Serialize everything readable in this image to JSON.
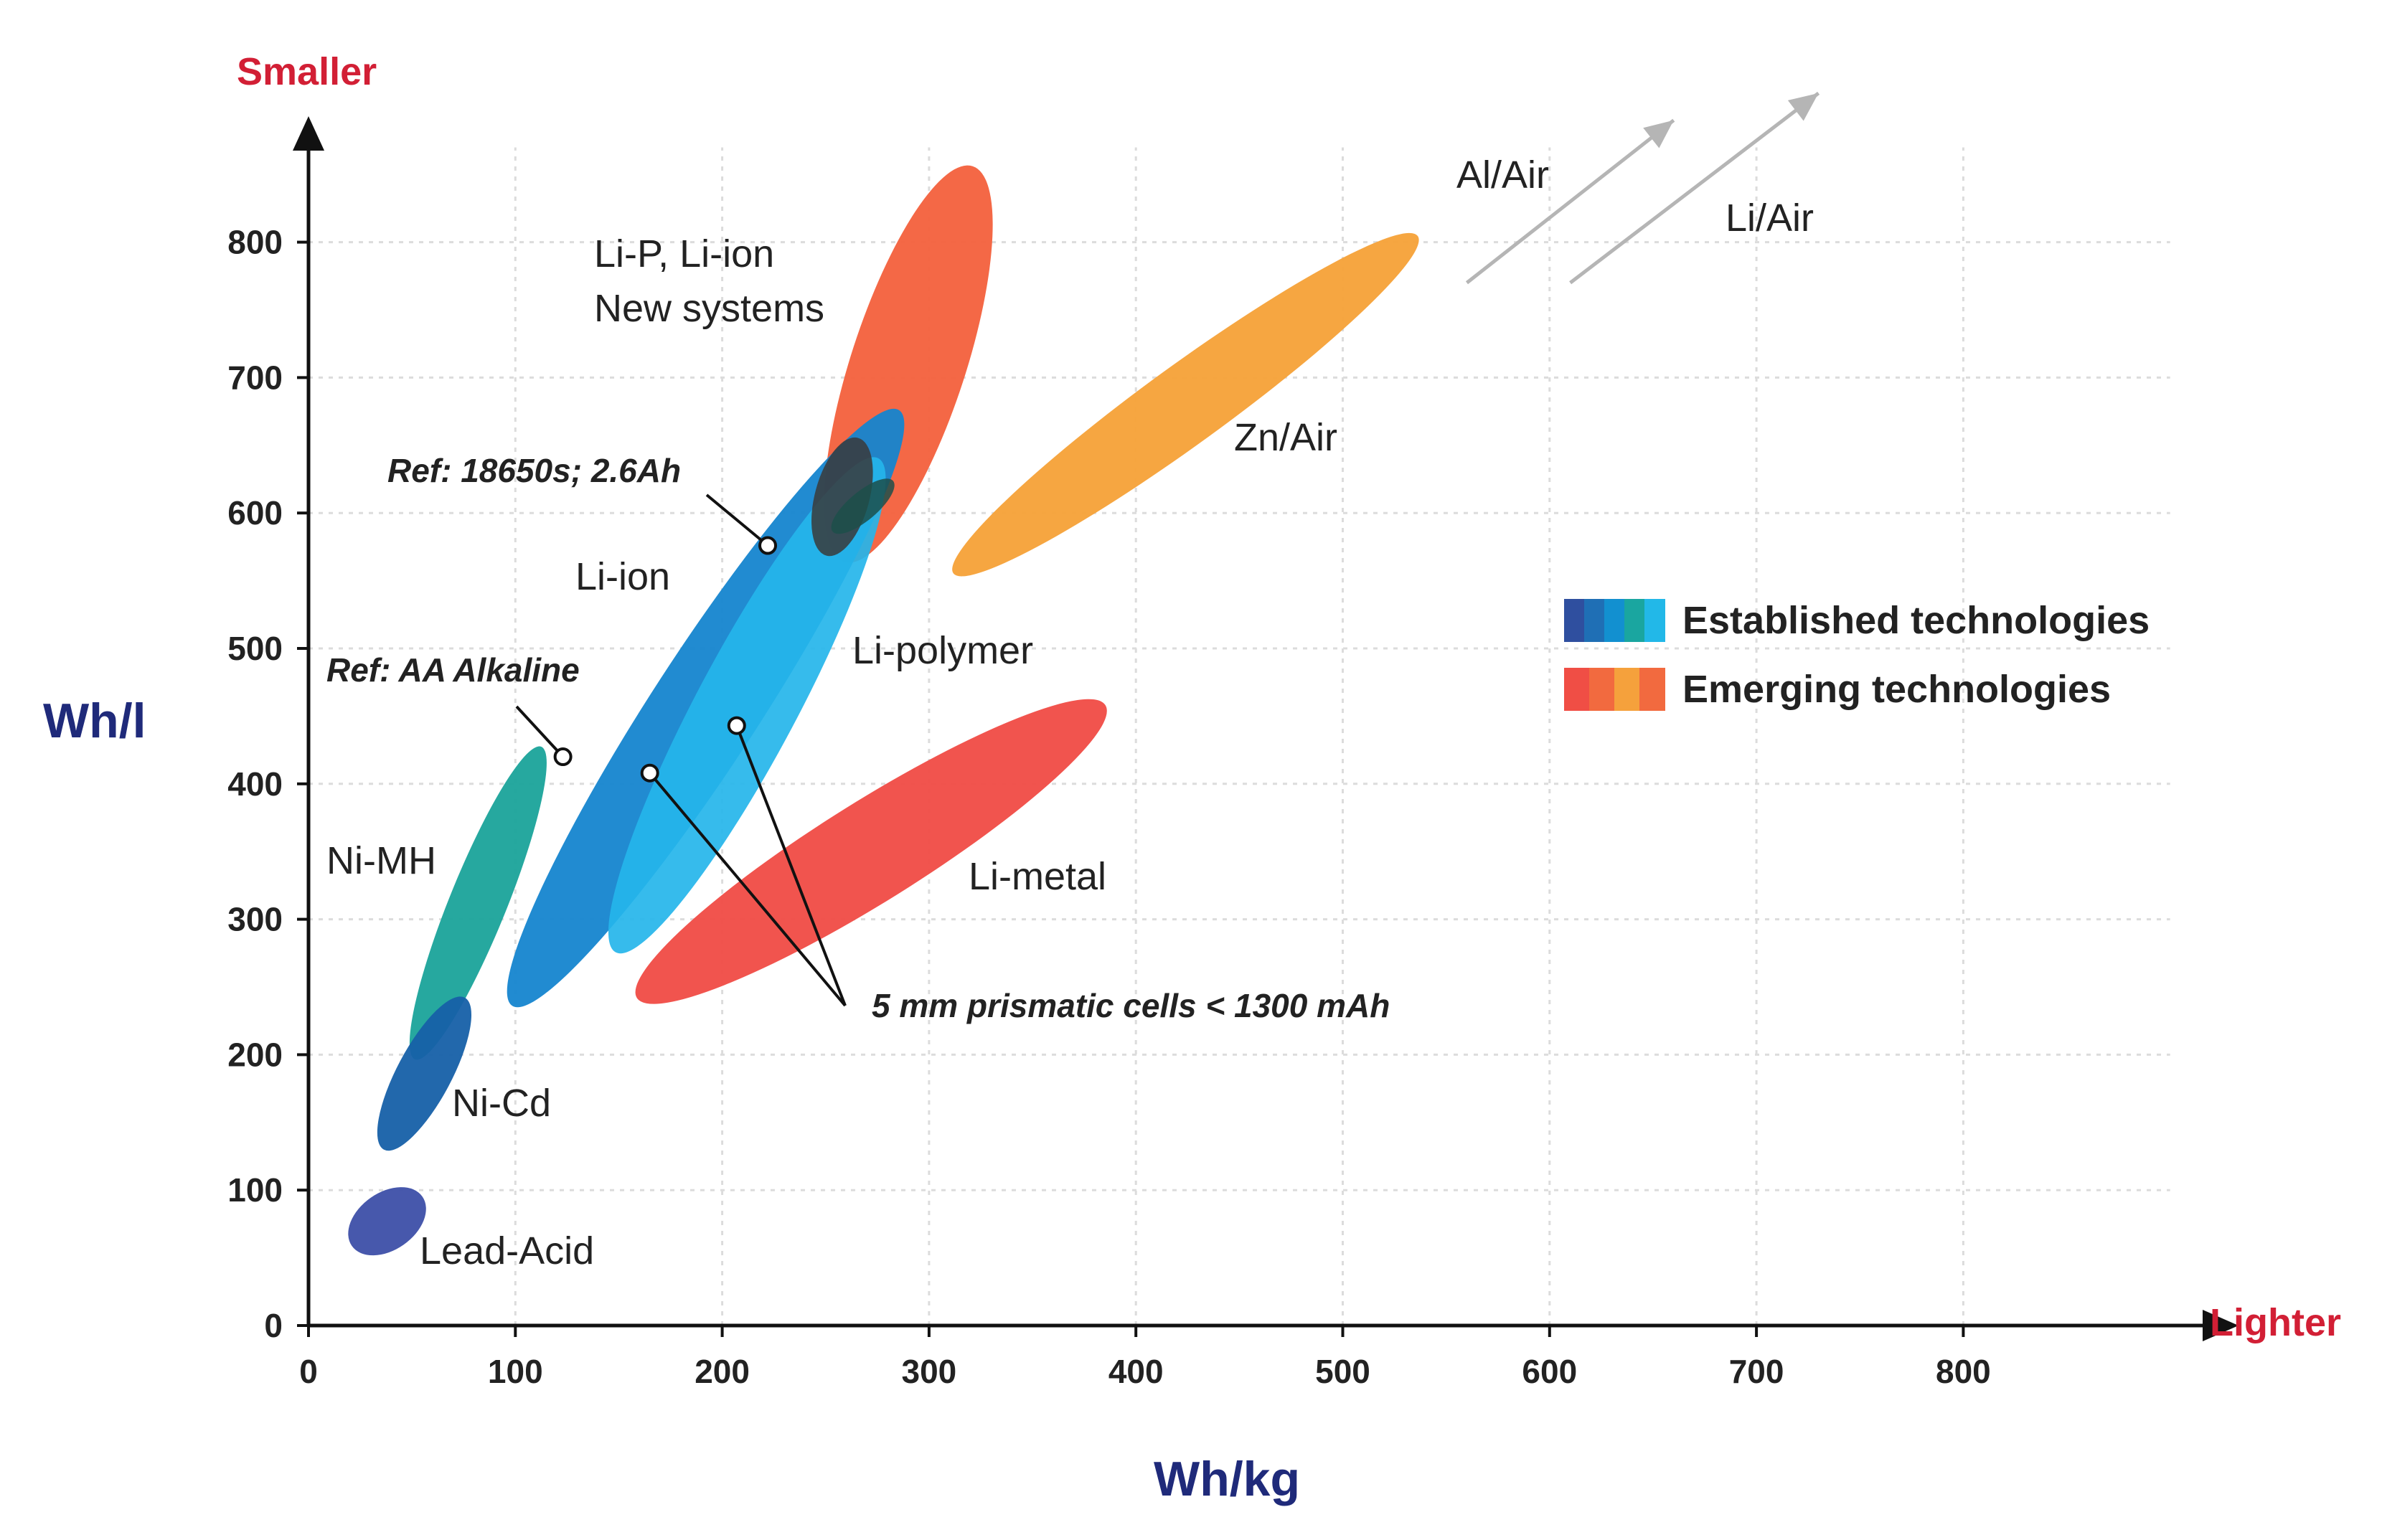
{
  "chart_data": {
    "type": "scatter",
    "title": "",
    "xlabel": "Wh/kg",
    "ylabel": "Wh/l",
    "xlim": [
      0,
      900
    ],
    "ylim": [
      0,
      870
    ],
    "xticks": [
      0,
      100,
      200,
      300,
      400,
      500,
      600,
      700,
      800
    ],
    "yticks": [
      0,
      100,
      200,
      300,
      400,
      500,
      600,
      700,
      800
    ],
    "grid": true,
    "x_direction_label": "Lighter",
    "y_direction_label": "Smaller",
    "legend_position": "right",
    "legend": [
      {
        "label": "Established technologies",
        "colors": [
          "#2f4f9f",
          "#1f6fb5",
          "#1290d0",
          "#1aa6a0",
          "#22b8e8"
        ]
      },
      {
        "label": "Emerging technologies",
        "colors": [
          "#f04e45",
          "#f26a3f",
          "#f5a13c",
          "#f26a3f"
        ]
      }
    ],
    "series": [
      {
        "name": "Lead-Acid",
        "group": "established",
        "color": "#3d4fa8",
        "x_range": [
          20,
          55
        ],
        "y_range": [
          50,
          105
        ]
      },
      {
        "name": "Ni-Cd",
        "group": "established",
        "color": "#1660a8",
        "x_range": [
          35,
          75
        ],
        "y_range": [
          135,
          240
        ]
      },
      {
        "name": "Ni-MH",
        "group": "established",
        "color": "#1aa39a",
        "x_range": [
          50,
          110
        ],
        "y_range": [
          205,
          415
        ]
      },
      {
        "name": "Li-ion",
        "group": "established",
        "color": "#1585cf",
        "x_range": [
          95,
          290
        ],
        "y_range": [
          250,
          660
        ]
      },
      {
        "name": "Li-polymer",
        "group": "established",
        "color": "#25b5ea",
        "x_range": [
          140,
          285
        ],
        "y_range": [
          290,
          620
        ]
      },
      {
        "name": "Li-P, Li-ion New systems",
        "group": "emerging",
        "color": "#f3603c",
        "x_range": [
          245,
          330
        ],
        "y_range": [
          580,
          840
        ]
      },
      {
        "name": "Li-metal",
        "group": "emerging",
        "color": "#f04b45",
        "x_range": [
          160,
          380
        ],
        "y_range": [
          235,
          465
        ]
      },
      {
        "name": "Zn/Air",
        "group": "emerging",
        "color": "#f5a137",
        "x_range": [
          315,
          535
        ],
        "y_range": [
          540,
          820
        ]
      },
      {
        "name": "Al/Air",
        "group": "emerging",
        "arrow": true,
        "x_range": [
          560,
          660
        ],
        "y_range": [
          770,
          890
        ]
      },
      {
        "name": "Li/Air",
        "group": "emerging",
        "arrow": true,
        "x_range": [
          610,
          730
        ],
        "y_range": [
          770,
          910
        ]
      }
    ],
    "reference_points": [
      {
        "label": "Ref: 18650s; 2.6Ah",
        "x": 222,
        "y": 576
      },
      {
        "label": "Ref: AA Alkaline",
        "x": 123,
        "y": 420
      },
      {
        "label": "5 mm prismatic cells < 1300 mAh",
        "x": 165,
        "y": 408
      },
      {
        "label": "5 mm prismatic cells < 1300 mAh",
        "x": 207,
        "y": 443
      }
    ],
    "annotations": [
      "Ref: 18650s; 2.6Ah",
      "Ref: AA Alkaline",
      "5 mm prismatic cells < 1300 mAh"
    ]
  }
}
